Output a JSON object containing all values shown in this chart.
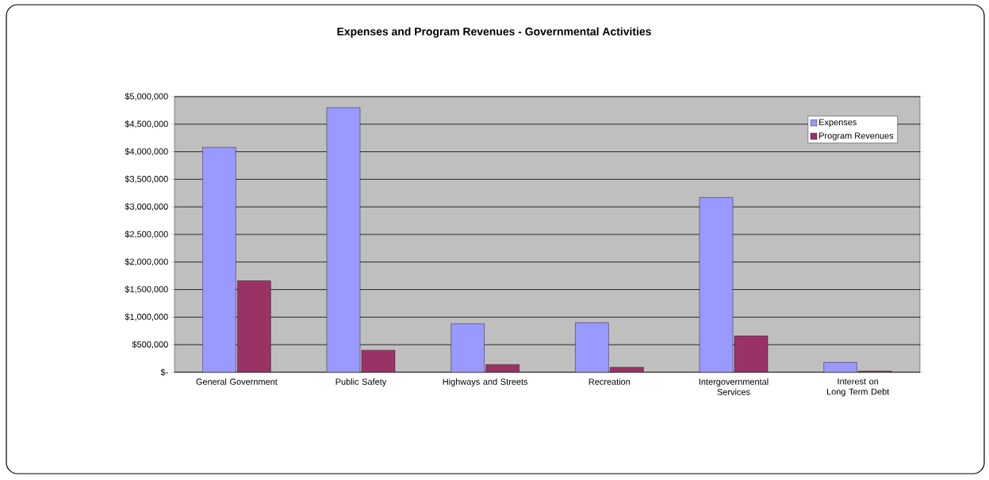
{
  "chart_data": {
    "type": "bar",
    "title": "Expenses and Program Revenues - Governmental Activities",
    "categories": [
      "General Government",
      "Public Safety",
      "Highways and Streets",
      "Recreation",
      "Intergovernmental Services",
      "Interest on Long Term Debt"
    ],
    "series": [
      {
        "name": "Expenses",
        "color": "#9999ff",
        "values": [
          4080000,
          4800000,
          880000,
          900000,
          3170000,
          180000
        ]
      },
      {
        "name": "Program Revenues",
        "color": "#993366",
        "values": [
          1660000,
          400000,
          140000,
          90000,
          660000,
          20000
        ]
      }
    ],
    "ylim": [
      0,
      5000000
    ],
    "yticks": [
      {
        "value": 0,
        "label": "$-"
      },
      {
        "value": 500000,
        "label": "$500,000"
      },
      {
        "value": 1000000,
        "label": "$1,000,000"
      },
      {
        "value": 1500000,
        "label": "$1,500,000"
      },
      {
        "value": 2000000,
        "label": "$2,000,000"
      },
      {
        "value": 2500000,
        "label": "$2,500,000"
      },
      {
        "value": 3000000,
        "label": "$3,000,000"
      },
      {
        "value": 3500000,
        "label": "$3,500,000"
      },
      {
        "value": 4000000,
        "label": "$4,000,000"
      },
      {
        "value": 4500000,
        "label": "$4,500,000"
      },
      {
        "value": 5000000,
        "label": "$5,000,000"
      }
    ],
    "grid": "y",
    "legend": "top right"
  }
}
